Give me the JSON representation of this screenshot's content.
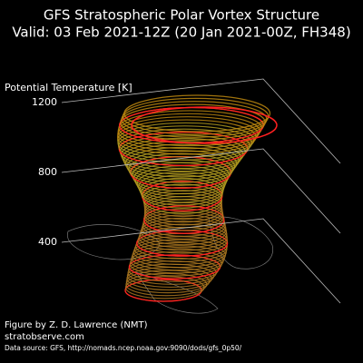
{
  "chart_data": {
    "type": "vortex3d",
    "title": "GFS Stratospheric Polar Vortex Structure",
    "subtitle": "Valid: 03 Feb 2021-12Z  (20 Jan 2021-00Z, FH348)",
    "zlabel": "Potential Temperature [K]",
    "zlim": [
      400,
      1200
    ],
    "zticks": [
      400,
      800,
      1200
    ],
    "credit": "Figure by Z. D. Lawrence (NMT)",
    "website": "stratobserve.com",
    "source": "Data source: GFS, http://nomads.ncep.noaa.gov:9090/dods/gfs_0p50/"
  }
}
